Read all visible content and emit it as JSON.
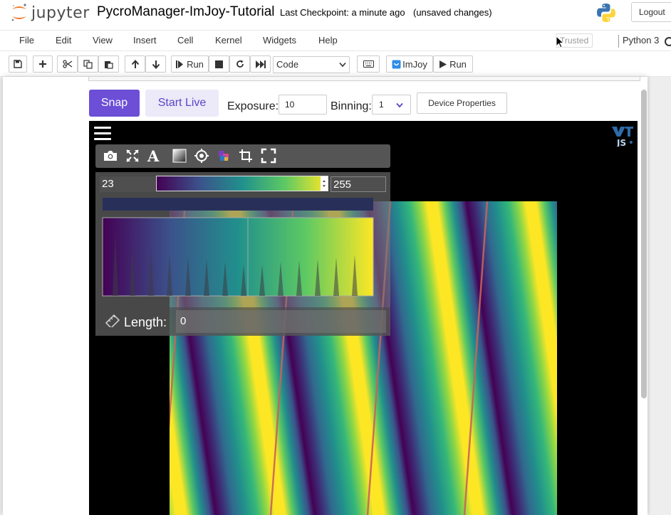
{
  "header": {
    "logo_text": "jupyter",
    "notebook_name": "PycroManager-ImJoy-Tutorial",
    "checkpoint": "Last Checkpoint: a minute ago",
    "autosave_status": "(unsaved changes)",
    "logout_label": "Logout"
  },
  "menubar": {
    "items": [
      "File",
      "Edit",
      "View",
      "Insert",
      "Cell",
      "Kernel",
      "Widgets",
      "Help"
    ],
    "trusted_label": "Trusted",
    "kernel_name": "Python 3"
  },
  "toolbar": {
    "run_label": "Run",
    "cell_type": "Code",
    "imjoy_label": "ImJoy",
    "imjoy_run_label": "Run"
  },
  "widget": {
    "snap_label": "Snap",
    "start_live_label": "Start Live",
    "exposure_label": "Exposure:",
    "exposure_value": "10",
    "binning_label": "Binning:",
    "binning_value": "1",
    "device_properties_label": "Device Properties"
  },
  "viewer": {
    "lut_min": "23",
    "lut_max": "255",
    "length_label": "Length:",
    "length_value": "0",
    "colormap": [
      "#440154",
      "#3b528b",
      "#21908c",
      "#5dc963",
      "#fde725"
    ]
  },
  "colors": {
    "snap_bg": "#6c4fd6",
    "live_bg": "#ece9f8",
    "live_text": "#5b46c7",
    "jupyter_orange": "#f37726"
  }
}
